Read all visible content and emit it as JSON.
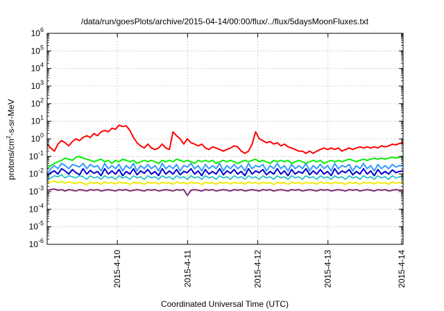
{
  "chart_data": {
    "type": "line",
    "title": "/data/run/goesPlots/archive/2015-04-14/00:00/flux/../flux/5daysMoonFluxes.txt",
    "xlabel": "Coordinated Universal Time (UTC)",
    "ylabel": {
      "base": "protons/cm",
      "sup": "2",
      "rest": "-s-sr-MeV"
    },
    "x_range_days": [
      0,
      5.07
    ],
    "x_ticks": [
      {
        "label": "2015-4-10",
        "day": 1.0
      },
      {
        "label": "2015-4-11",
        "day": 2.0
      },
      {
        "label": "2015-4-12",
        "day": 3.0
      },
      {
        "label": "2015-4-13",
        "day": 4.0
      },
      {
        "label": "2015-4-14",
        "day": 5.05
      }
    ],
    "y_scale": "log",
    "y_range_exp": [
      -6,
      6
    ],
    "y_ticks": [
      {
        "base": "10",
        "exp": "6"
      },
      {
        "base": "10",
        "exp": "5"
      },
      {
        "base": "10",
        "exp": "4"
      },
      {
        "base": "10",
        "exp": "3"
      },
      {
        "base": "10",
        "exp": "2"
      },
      {
        "base": "10",
        "exp": "1"
      },
      {
        "base": "10",
        "exp": "0"
      },
      {
        "base": "10",
        "exp": "-1"
      },
      {
        "base": "10",
        "exp": "-2"
      },
      {
        "base": "10",
        "exp": "-3"
      },
      {
        "base": "10",
        "exp": "-4"
      },
      {
        "base": "10",
        "exp": "-5"
      },
      {
        "base": "10",
        "exp": "-6"
      }
    ],
    "grid": true,
    "series": [
      {
        "color": "#ff0000",
        "width": 2,
        "values": [
          0.5,
          0.3,
          0.2,
          0.5,
          0.8,
          0.6,
          0.4,
          0.7,
          1.0,
          0.8,
          1.2,
          1.5,
          1.2,
          2.0,
          1.5,
          2.5,
          3.0,
          2.5,
          4.0,
          3.5,
          6.0,
          5.0,
          5.5,
          3.0,
          1.2,
          0.6,
          0.4,
          0.3,
          0.5,
          0.3,
          0.25,
          0.3,
          0.5,
          0.3,
          0.25,
          2.5,
          1.5,
          1.0,
          0.5,
          1.0,
          0.6,
          0.5,
          0.4,
          0.5,
          0.3,
          0.25,
          0.35,
          0.3,
          0.25,
          0.2,
          0.25,
          0.3,
          0.4,
          0.35,
          0.2,
          0.15,
          0.2,
          0.5,
          2.5,
          1.0,
          0.8,
          0.6,
          0.7,
          0.5,
          0.6,
          0.4,
          0.5,
          0.35,
          0.3,
          0.25,
          0.2,
          0.2,
          0.15,
          0.2,
          0.15,
          0.2,
          0.25,
          0.3,
          0.25,
          0.3,
          0.25,
          0.3,
          0.2,
          0.25,
          0.3,
          0.25,
          0.3,
          0.35,
          0.3,
          0.35,
          0.3,
          0.35,
          0.3,
          0.4,
          0.35,
          0.4,
          0.5,
          0.45,
          0.55,
          0.6
        ]
      },
      {
        "color": "#00ee00",
        "width": 2,
        "values": [
          0.02,
          0.03,
          0.04,
          0.05,
          0.06,
          0.08,
          0.07,
          0.06,
          0.09,
          0.1,
          0.08,
          0.07,
          0.06,
          0.05,
          0.06,
          0.07,
          0.05,
          0.06,
          0.04,
          0.06,
          0.05,
          0.07,
          0.06,
          0.05,
          0.06,
          0.04,
          0.05,
          0.06,
          0.05,
          0.06,
          0.05,
          0.04,
          0.06,
          0.05,
          0.06,
          0.05,
          0.07,
          0.06,
          0.05,
          0.06,
          0.05,
          0.04,
          0.06,
          0.05,
          0.06,
          0.05,
          0.06,
          0.04,
          0.05,
          0.06,
          0.05,
          0.06,
          0.05,
          0.04,
          0.05,
          0.06,
          0.05,
          0.06,
          0.07,
          0.05,
          0.06,
          0.05,
          0.04,
          0.06,
          0.05,
          0.06,
          0.05,
          0.06,
          0.04,
          0.05,
          0.06,
          0.05,
          0.04,
          0.05,
          0.06,
          0.05,
          0.06,
          0.04,
          0.05,
          0.06,
          0.05,
          0.06,
          0.05,
          0.06,
          0.07,
          0.06,
          0.05,
          0.06,
          0.07,
          0.06,
          0.07,
          0.08,
          0.07,
          0.08,
          0.07,
          0.08,
          0.09,
          0.08,
          0.09,
          0.1
        ]
      },
      {
        "color": "#3399ff",
        "width": 2,
        "values": [
          0.01,
          0.02,
          0.03,
          0.02,
          0.04,
          0.03,
          0.02,
          0.035,
          0.03,
          0.025,
          0.04,
          0.02,
          0.035,
          0.025,
          0.03,
          0.015,
          0.04,
          0.02,
          0.03,
          0.02,
          0.035,
          0.015,
          0.03,
          0.02,
          0.04,
          0.015,
          0.03,
          0.02,
          0.035,
          0.02,
          0.03,
          0.015,
          0.04,
          0.02,
          0.03,
          0.02,
          0.035,
          0.015,
          0.03,
          0.025,
          0.04,
          0.02,
          0.03,
          0.015,
          0.035,
          0.02,
          0.03,
          0.02,
          0.04,
          0.015,
          0.03,
          0.02,
          0.035,
          0.02,
          0.03,
          0.015,
          0.04,
          0.02,
          0.03,
          0.025,
          0.035,
          0.015,
          0.03,
          0.02,
          0.04,
          0.02,
          0.03,
          0.015,
          0.035,
          0.02,
          0.03,
          0.02,
          0.04,
          0.015,
          0.03,
          0.02,
          0.035,
          0.02,
          0.03,
          0.015,
          0.04,
          0.02,
          0.03,
          0.025,
          0.035,
          0.015,
          0.03,
          0.02,
          0.04,
          0.02,
          0.03,
          0.015,
          0.035,
          0.02,
          0.03,
          0.02,
          0.035,
          0.025,
          0.03,
          0.03
        ]
      },
      {
        "color": "#0000cc",
        "width": 2,
        "values": [
          0.008,
          0.012,
          0.015,
          0.01,
          0.02,
          0.015,
          0.01,
          0.018,
          0.012,
          0.009,
          0.02,
          0.01,
          0.016,
          0.011,
          0.014,
          0.008,
          0.02,
          0.01,
          0.015,
          0.01,
          0.018,
          0.008,
          0.014,
          0.01,
          0.02,
          0.009,
          0.015,
          0.011,
          0.018,
          0.01,
          0.014,
          0.008,
          0.02,
          0.01,
          0.015,
          0.01,
          0.018,
          0.009,
          0.014,
          0.012,
          0.02,
          0.01,
          0.015,
          0.008,
          0.018,
          0.01,
          0.014,
          0.01,
          0.02,
          0.009,
          0.015,
          0.011,
          0.018,
          0.01,
          0.014,
          0.008,
          0.02,
          0.01,
          0.015,
          0.012,
          0.018,
          0.009,
          0.014,
          0.01,
          0.02,
          0.01,
          0.015,
          0.008,
          0.018,
          0.01,
          0.014,
          0.011,
          0.02,
          0.009,
          0.015,
          0.01,
          0.018,
          0.01,
          0.014,
          0.008,
          0.02,
          0.01,
          0.015,
          0.012,
          0.018,
          0.009,
          0.014,
          0.01,
          0.02,
          0.01,
          0.015,
          0.008,
          0.018,
          0.01,
          0.014,
          0.01,
          0.017,
          0.012,
          0.014,
          0.015
        ]
      },
      {
        "color": "#00bbbb",
        "width": 1.5,
        "values": [
          0.005,
          0.006,
          0.008,
          0.007,
          0.009,
          0.006,
          0.008,
          0.007,
          0.006,
          0.008,
          0.007,
          0.005,
          0.008,
          0.006,
          0.007,
          0.005,
          0.008,
          0.006,
          0.007,
          0.005,
          0.008,
          0.006,
          0.007,
          0.005,
          0.008,
          0.006,
          0.007,
          0.005,
          0.008,
          0.006,
          0.007,
          0.005,
          0.008,
          0.006,
          0.007,
          0.005,
          0.008,
          0.006,
          0.007,
          0.005,
          0.008,
          0.006,
          0.007,
          0.005,
          0.008,
          0.006,
          0.007,
          0.005,
          0.008,
          0.006,
          0.007,
          0.005,
          0.008,
          0.006,
          0.007,
          0.005,
          0.008,
          0.006,
          0.007,
          0.005,
          0.008,
          0.006,
          0.007,
          0.005,
          0.008,
          0.006,
          0.007,
          0.005,
          0.008,
          0.006,
          0.007,
          0.005,
          0.008,
          0.006,
          0.007,
          0.005,
          0.008,
          0.006,
          0.007,
          0.005,
          0.008,
          0.006,
          0.007,
          0.005,
          0.008,
          0.006,
          0.007,
          0.005,
          0.008,
          0.006,
          0.007,
          0.005,
          0.008,
          0.006,
          0.007,
          0.005,
          0.008,
          0.006,
          0.007,
          0.007
        ]
      },
      {
        "color": "#eeee00",
        "width": 2,
        "values": [
          0.003,
          0.0035,
          0.004,
          0.0032,
          0.0038,
          0.003,
          0.0036,
          0.0032,
          0.0028,
          0.0034,
          0.003,
          0.0025,
          0.0034,
          0.003,
          0.0032,
          0.0026,
          0.0035,
          0.003,
          0.0033,
          0.0027,
          0.0035,
          0.003,
          0.0032,
          0.0025,
          0.0034,
          0.003,
          0.0032,
          0.0026,
          0.0035,
          0.003,
          0.0033,
          0.0027,
          0.0034,
          0.003,
          0.0032,
          0.0026,
          0.0035,
          0.003,
          0.0033,
          0.0027,
          0.0034,
          0.003,
          0.0032,
          0.0025,
          0.0034,
          0.003,
          0.0032,
          0.0026,
          0.0035,
          0.003,
          0.0033,
          0.0027,
          0.0034,
          0.003,
          0.0032,
          0.0026,
          0.0035,
          0.003,
          0.0033,
          0.0027,
          0.0034,
          0.003,
          0.0032,
          0.0025,
          0.0034,
          0.003,
          0.0032,
          0.0026,
          0.0035,
          0.003,
          0.0033,
          0.0027,
          0.0034,
          0.003,
          0.0032,
          0.0026,
          0.0035,
          0.003,
          0.0033,
          0.0027,
          0.0034,
          0.003,
          0.0032,
          0.0025,
          0.0034,
          0.003,
          0.0032,
          0.0026,
          0.0035,
          0.003,
          0.0033,
          0.0027,
          0.0034,
          0.003,
          0.0032,
          0.0026,
          0.0035,
          0.003,
          0.0033,
          0.0032
        ]
      },
      {
        "color": "#7f2a6e",
        "width": 2,
        "values": [
          0.0012,
          0.0013,
          0.0014,
          0.0012,
          0.0013,
          0.0011,
          0.0013,
          0.0012,
          0.0011,
          0.0013,
          0.0012,
          0.0011,
          0.0013,
          0.0012,
          0.0013,
          0.0011,
          0.0012,
          0.0013,
          0.0012,
          0.0011,
          0.0013,
          0.0012,
          0.0013,
          0.0011,
          0.0012,
          0.0013,
          0.0012,
          0.0011,
          0.0013,
          0.0012,
          0.0013,
          0.0011,
          0.0012,
          0.0013,
          0.0012,
          0.0011,
          0.0013,
          0.0012,
          0.0013,
          0.0006,
          0.0012,
          0.0013,
          0.0012,
          0.0011,
          0.0013,
          0.0012,
          0.0013,
          0.0011,
          0.0012,
          0.0013,
          0.0012,
          0.0011,
          0.0013,
          0.0012,
          0.0013,
          0.0011,
          0.0012,
          0.0013,
          0.0012,
          0.0011,
          0.0013,
          0.0012,
          0.0013,
          0.0011,
          0.0012,
          0.0013,
          0.0012,
          0.0011,
          0.0013,
          0.0012,
          0.0013,
          0.0011,
          0.0012,
          0.0013,
          0.0012,
          0.0011,
          0.0013,
          0.0012,
          0.0013,
          0.0011,
          0.0012,
          0.0013,
          0.0012,
          0.0011,
          0.0013,
          0.0012,
          0.0013,
          0.0011,
          0.0012,
          0.0013,
          0.0012,
          0.0011,
          0.0013,
          0.0012,
          0.0013,
          0.0011,
          0.0012,
          0.0013,
          0.0012,
          0.0012
        ]
      }
    ]
  }
}
